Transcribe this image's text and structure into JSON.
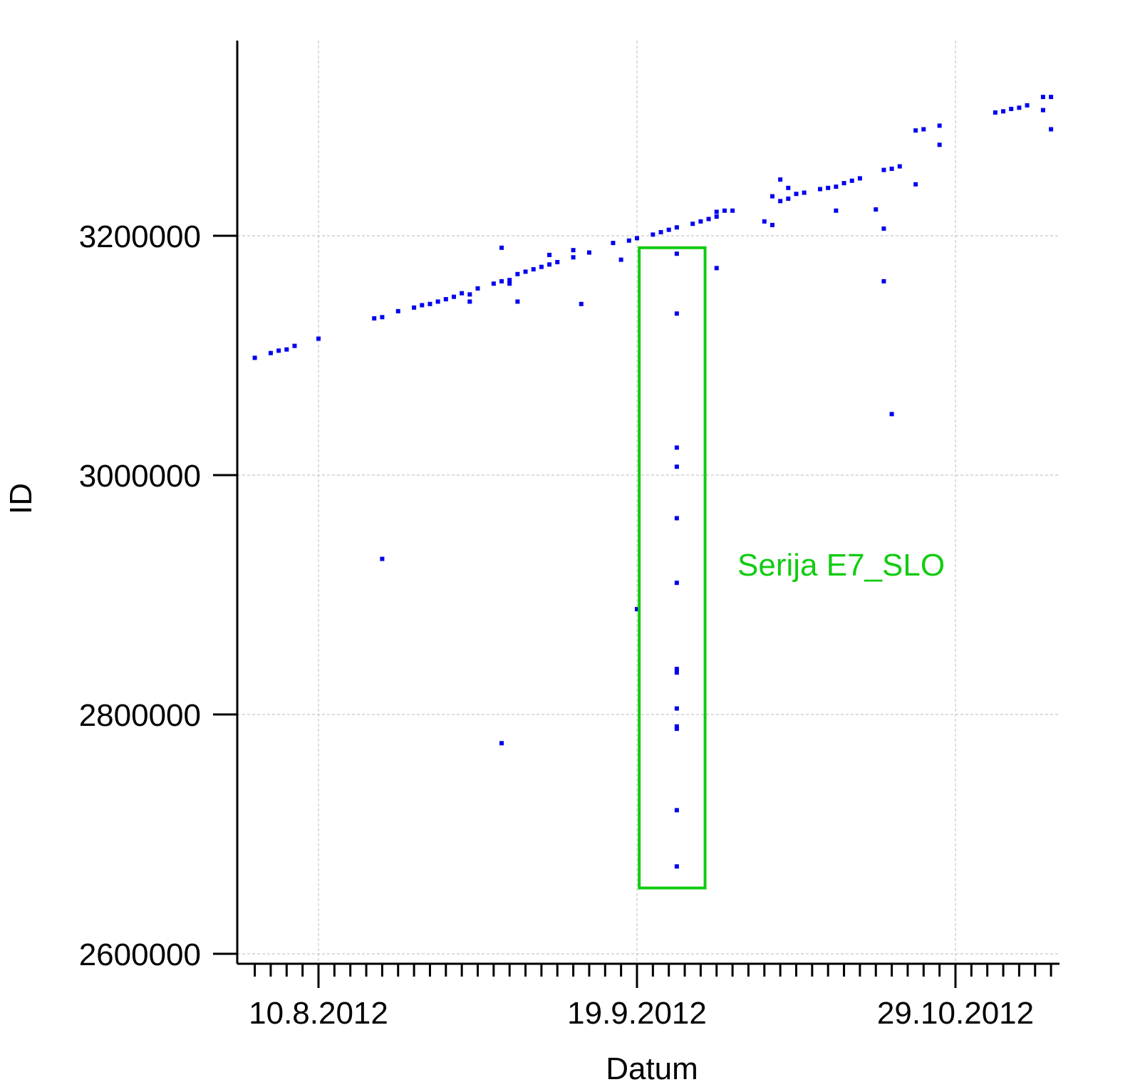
{
  "chart_data": {
    "type": "scatter",
    "title": "",
    "xlabel": "Datum",
    "ylabel": "ID",
    "x_tick_labels": [
      "10.8.2012",
      "19.9.2012",
      "29.10.2012"
    ],
    "x_tick_dates": [
      "2012-08-10",
      "2012-09-19",
      "2012-10-29"
    ],
    "x_minor_tick_interval_days": 2,
    "xlim": [
      "2012-07-31",
      "2012-11-10"
    ],
    "y_tick_labels": [
      "2600000",
      "2800000",
      "3000000",
      "3200000"
    ],
    "y_ticks": [
      2600000,
      2800000,
      3000000,
      3200000
    ],
    "ylim": [
      2590000,
      3360000
    ],
    "grid": true,
    "colors": {
      "points": "#0000ee",
      "annotation": "#11cc11",
      "axis": "#000000",
      "grid": "#c8c8c8"
    },
    "annotation": {
      "text": "Serija E7_SLO",
      "x_range": [
        "2012-09-20",
        "2012-09-28"
      ],
      "y_range": [
        2655000,
        3190000
      ]
    },
    "series": [
      {
        "points": [
          [
            "2012-08-02",
            3098000
          ],
          [
            "2012-08-04",
            3102000
          ],
          [
            "2012-08-05",
            3104000
          ],
          [
            "2012-08-06",
            3105000
          ],
          [
            "2012-08-07",
            3108000
          ],
          [
            "2012-08-10",
            3114000
          ],
          [
            "2012-08-17",
            3131000
          ],
          [
            "2012-08-18",
            3132000
          ],
          [
            "2012-08-20",
            3137000
          ],
          [
            "2012-08-22",
            3140000
          ],
          [
            "2012-08-23",
            3142000
          ],
          [
            "2012-08-24",
            3143000
          ],
          [
            "2012-08-25",
            3145000
          ],
          [
            "2012-08-26",
            3147000
          ],
          [
            "2012-08-27",
            3149000
          ],
          [
            "2012-08-28",
            3152000
          ],
          [
            "2012-08-29",
            3151000
          ],
          [
            "2012-08-29",
            3145000
          ],
          [
            "2012-08-30",
            3156000
          ],
          [
            "2012-09-01",
            3160000
          ],
          [
            "2012-09-02",
            3162000
          ],
          [
            "2012-09-02",
            3190000
          ],
          [
            "2012-09-03",
            3163000
          ],
          [
            "2012-09-03",
            3160000
          ],
          [
            "2012-09-04",
            3168000
          ],
          [
            "2012-09-04",
            3145000
          ],
          [
            "2012-09-05",
            3170000
          ],
          [
            "2012-09-06",
            3172000
          ],
          [
            "2012-09-07",
            3174000
          ],
          [
            "2012-09-08",
            3176000
          ],
          [
            "2012-09-08",
            3184000
          ],
          [
            "2012-09-09",
            3178000
          ],
          [
            "2012-09-11",
            3182000
          ],
          [
            "2012-09-11",
            3188000
          ],
          [
            "2012-09-12",
            3143000
          ],
          [
            "2012-09-13",
            3186000
          ],
          [
            "2012-09-16",
            3194000
          ],
          [
            "2012-09-17",
            3180000
          ],
          [
            "2012-09-18",
            3196000
          ],
          [
            "2012-09-19",
            3198000
          ],
          [
            "2012-09-21",
            3201000
          ],
          [
            "2012-09-22",
            3203000
          ],
          [
            "2012-09-23",
            3205000
          ],
          [
            "2012-09-24",
            3207000
          ],
          [
            "2012-09-26",
            3210000
          ],
          [
            "2012-09-27",
            3212000
          ],
          [
            "2012-09-28",
            3214000
          ],
          [
            "2012-09-29",
            3216000
          ],
          [
            "2012-09-29",
            3220000
          ],
          [
            "2012-09-30",
            3221000
          ],
          [
            "2012-10-01",
            3221000
          ],
          [
            "2012-10-05",
            3212000
          ],
          [
            "2012-10-06",
            3209000
          ],
          [
            "2012-10-06",
            3233000
          ],
          [
            "2012-10-07",
            3229000
          ],
          [
            "2012-10-07",
            3247000
          ],
          [
            "2012-10-08",
            3240000
          ],
          [
            "2012-10-08",
            3231000
          ],
          [
            "2012-10-09",
            3235000
          ],
          [
            "2012-10-10",
            3236000
          ],
          [
            "2012-10-12",
            3239000
          ],
          [
            "2012-10-13",
            3240000
          ],
          [
            "2012-10-14",
            3241000
          ],
          [
            "2012-10-14",
            3221000
          ],
          [
            "2012-10-15",
            3244000
          ],
          [
            "2012-10-16",
            3246000
          ],
          [
            "2012-10-17",
            3248000
          ],
          [
            "2012-10-19",
            3222000
          ],
          [
            "2012-10-20",
            3255000
          ],
          [
            "2012-10-20",
            3206000
          ],
          [
            "2012-10-20",
            3162000
          ],
          [
            "2012-10-21",
            3256000
          ],
          [
            "2012-10-21",
            3051000
          ],
          [
            "2012-10-22",
            3258000
          ],
          [
            "2012-10-24",
            3243000
          ],
          [
            "2012-10-24",
            3288000
          ],
          [
            "2012-10-25",
            3289000
          ],
          [
            "2012-10-27",
            3292000
          ],
          [
            "2012-10-27",
            3276000
          ],
          [
            "2012-11-03",
            3303000
          ],
          [
            "2012-11-04",
            3304000
          ],
          [
            "2012-11-05",
            3306000
          ],
          [
            "2012-11-06",
            3307000
          ],
          [
            "2012-11-07",
            3309000
          ],
          [
            "2012-11-09",
            3316000
          ],
          [
            "2012-11-09",
            3305000
          ],
          [
            "2012-11-10",
            3316000
          ],
          [
            "2012-11-10",
            3289000
          ],
          [
            "2012-08-18",
            2930000
          ],
          [
            "2012-09-02",
            2776000
          ],
          [
            "2012-09-19",
            2888000
          ],
          [
            "2012-09-24",
            3185000
          ],
          [
            "2012-09-24",
            3135000
          ],
          [
            "2012-09-24",
            3023000
          ],
          [
            "2012-09-24",
            3007000
          ],
          [
            "2012-09-24",
            2964000
          ],
          [
            "2012-09-24",
            2910000
          ],
          [
            "2012-09-24",
            2838000
          ],
          [
            "2012-09-24",
            2835000
          ],
          [
            "2012-09-24",
            2805000
          ],
          [
            "2012-09-24",
            2790000
          ],
          [
            "2012-09-24",
            2788000
          ],
          [
            "2012-09-24",
            2720000
          ],
          [
            "2012-09-24",
            2673000
          ],
          [
            "2012-09-29",
            3173000
          ]
        ]
      }
    ]
  }
}
